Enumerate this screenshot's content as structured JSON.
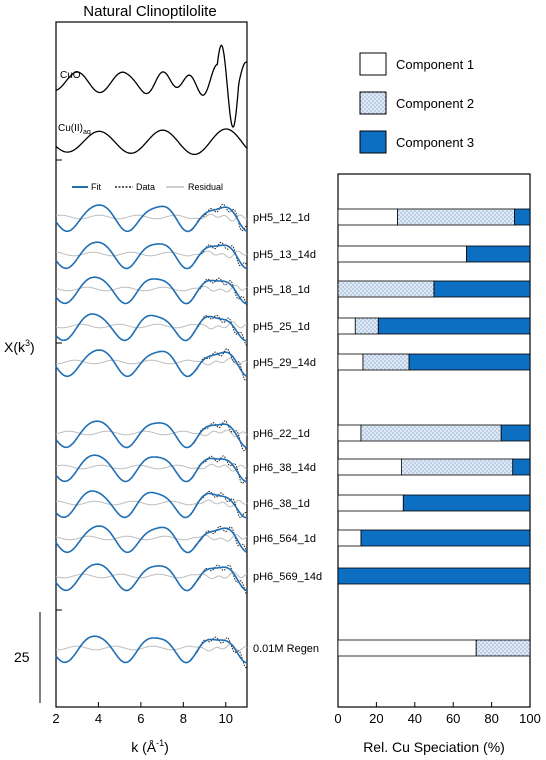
{
  "chart_data": [
    {
      "type": "line",
      "title": "Natural Clinoptilolite",
      "xlabel": "k (Å",
      "xlabel_sup": "-1",
      "xlabel_close": ")",
      "ylabel": "X(k",
      "ylabel_sup": "3",
      "ylabel_close": ")",
      "xlim": [
        2,
        11
      ],
      "xticks": [
        "2",
        "4",
        "6",
        "8",
        "10"
      ],
      "scale_bar_label": "25",
      "colors": {
        "fit": "#1f6fb5",
        "data": "#222222",
        "residual": "#bdbdbd",
        "reference": "#000000"
      },
      "legend": {
        "placement": "top",
        "entries": [
          "Fit",
          "Data",
          "Residual"
        ]
      },
      "references": [
        {
          "label": "CuO"
        },
        {
          "label_main": "Cu(II)",
          "label_sub": "aq"
        }
      ],
      "series": [
        {
          "name": "pH5_12_1d"
        },
        {
          "name": "pH5_13_14d"
        },
        {
          "name": "pH5_18_1d"
        },
        {
          "name": "pH5_25_1d"
        },
        {
          "name": "pH5_29_14d"
        },
        {
          "name": "pH6_22_1d"
        },
        {
          "name": "pH6_38_14d"
        },
        {
          "name": "pH6_38_1d"
        },
        {
          "name": "pH6_564_1d"
        },
        {
          "name": "pH6_569_14d"
        },
        {
          "name": "0.01M Regen"
        }
      ]
    },
    {
      "type": "bar",
      "orientation": "horizontal",
      "stacked": true,
      "xlabel": "Rel. Cu Speciation (%)",
      "xlim": [
        0,
        100
      ],
      "xticks": [
        "0",
        "20",
        "40",
        "60",
        "80",
        "100"
      ],
      "legend": {
        "placement": "top-right"
      },
      "component_names": [
        "Component 1",
        "Component 2",
        "Component 3"
      ],
      "colors": {
        "component1": "#ffffff",
        "component2": "#dfe9f5",
        "component3": "#0d6fc2"
      },
      "categories": [
        "pH5_12_1d",
        "pH5_13_14d",
        "pH5_18_1d",
        "pH5_25_1d",
        "pH5_29_14d",
        "pH6_22_1d",
        "pH6_38_14d",
        "pH6_38_1d",
        "pH6_564_1d",
        "pH6_569_14d",
        "0.01M Regen"
      ],
      "series": [
        {
          "name": "Component 1",
          "values": [
            31,
            67,
            0,
            9,
            13,
            12,
            33,
            34,
            12,
            0,
            72
          ]
        },
        {
          "name": "Component 2",
          "values": [
            61,
            0,
            50,
            12,
            24,
            73,
            58,
            0,
            0,
            0,
            28
          ]
        },
        {
          "name": "Component 3",
          "values": [
            8,
            33,
            50,
            79,
            63,
            15,
            9,
            66,
            88,
            100,
            0
          ]
        }
      ]
    }
  ]
}
